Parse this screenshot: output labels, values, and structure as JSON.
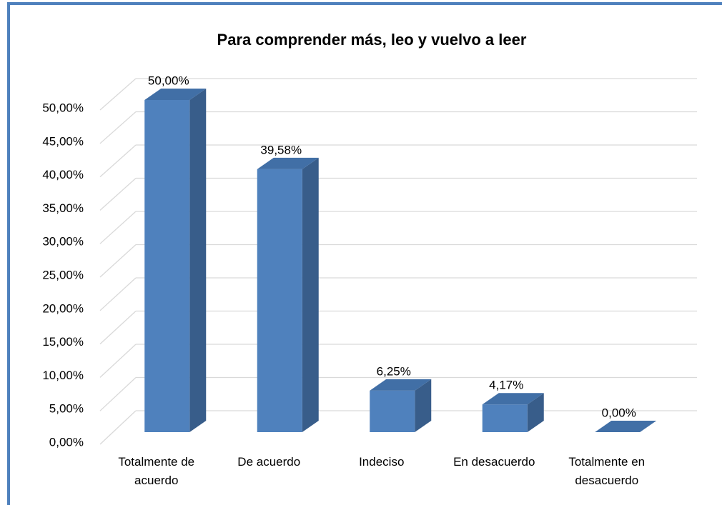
{
  "chart_data": {
    "type": "bar3d",
    "title": "Para comprender más, leo y vuelvo a leer",
    "categories": [
      "Totalmente de acuerdo",
      "De acuerdo",
      "Indeciso",
      "En desacuerdo",
      "Totalmente en desacuerdo"
    ],
    "values": [
      50,
      39.58,
      6.25,
      4.17,
      0
    ],
    "value_labels": [
      "50,00%",
      "39,58%",
      "6,25%",
      "4,17%",
      "0,00%"
    ],
    "color": "#4f81bd",
    "ylim": [
      0,
      50
    ],
    "yticks": [
      {
        "value": 0,
        "label": "0,00%"
      },
      {
        "value": 5,
        "label": "5,00%"
      },
      {
        "value": 10,
        "label": "10,00%"
      },
      {
        "value": 15,
        "label": "15,00%"
      },
      {
        "value": 20,
        "label": "20,00%"
      },
      {
        "value": 25,
        "label": "25,00%"
      },
      {
        "value": 30,
        "label": "30,00%"
      },
      {
        "value": 35,
        "label": "35,00%"
      },
      {
        "value": 40,
        "label": "40,00%"
      },
      {
        "value": 45,
        "label": "45,00%"
      },
      {
        "value": 50,
        "label": "50,00%"
      }
    ],
    "grid": true
  }
}
